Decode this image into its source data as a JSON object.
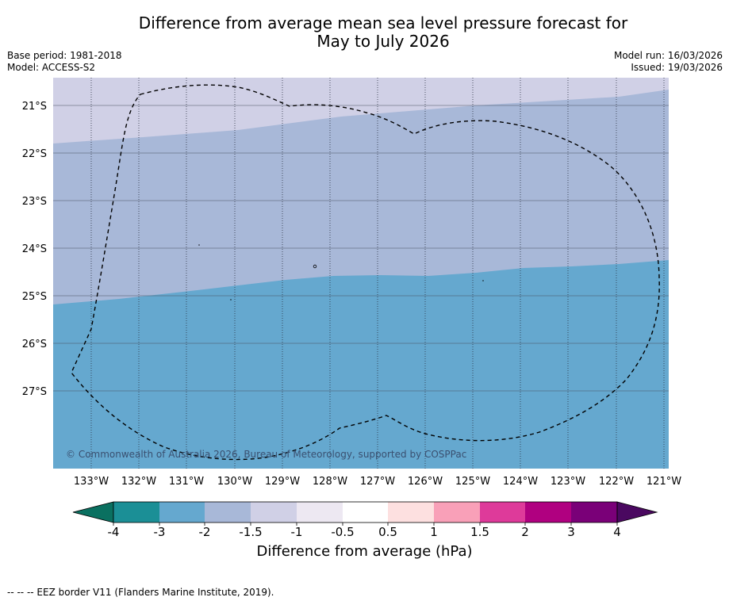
{
  "title": {
    "line1": "Difference from average mean sea level pressure forecast for",
    "line2": "May to July 2026"
  },
  "meta": {
    "base_period": "Base period: 1981-2018",
    "model": "Model: ACCESS-S2",
    "model_run": "Model run: 16/03/2026",
    "issued": "Issued: 19/03/2026"
  },
  "map": {
    "lat_labels": [
      "21°S",
      "22°S",
      "23°S",
      "24°S",
      "25°S",
      "26°S",
      "27°S"
    ],
    "lon_labels": [
      "133°W",
      "132°W",
      "131°W",
      "130°W",
      "129°W",
      "128°W",
      "127°W",
      "126°W",
      "125°W",
      "124°W",
      "123°W",
      "122°W",
      "121°W"
    ],
    "copyright": "© Commonwealth of Australia 2026, Bureau of Meteorology, supported by COSPPac",
    "field_colors": {
      "band_-1.5_to_-1": "#d0d0e6",
      "band_-2_to_-1.5": "#a8b8d8",
      "band_-3_to_-2": "#65a8cf"
    }
  },
  "colorbar": {
    "title": "Difference from average (hPa)",
    "tick_labels": [
      "-4",
      "-3",
      "-2",
      "-1.5",
      "-1",
      "-0.5",
      "0.5",
      "1",
      "1.5",
      "2",
      "3",
      "4"
    ],
    "under_color": "#0a7060",
    "over_color": "#4a0860",
    "colors": [
      "#1b8f96",
      "#65a8cf",
      "#a8b8d8",
      "#d0d0e6",
      "#ede8f2",
      "#ffffff",
      "#fde0e0",
      "#f9a0b8",
      "#de3a9a",
      "#b00080",
      "#7a0078"
    ]
  },
  "footnote": "-- -- -- EEZ border V11 (Flanders Marine Institute, 2019)."
}
